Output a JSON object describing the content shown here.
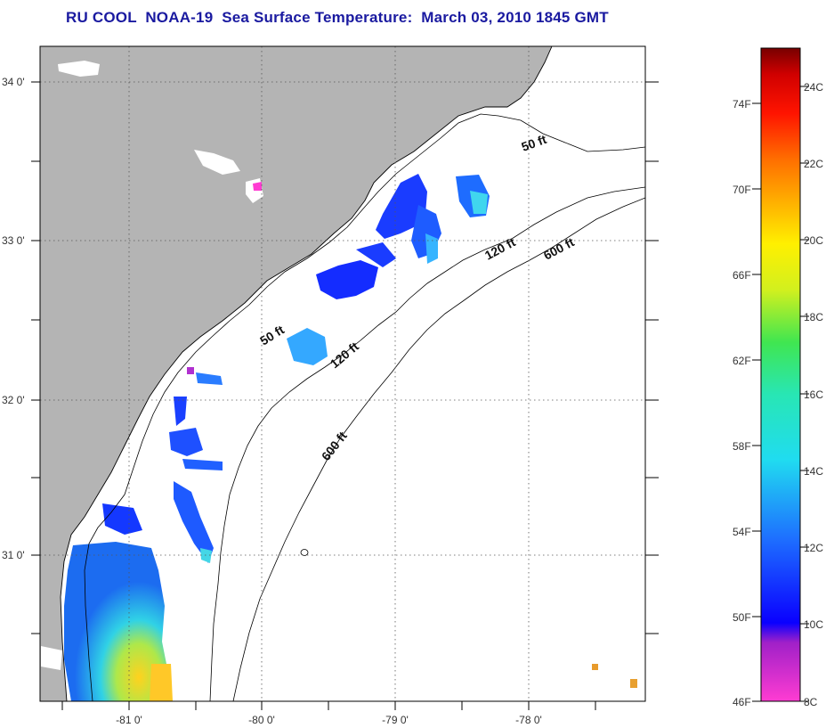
{
  "title": "RU COOL  NOAA-19  Sea Surface Temperature:  March 03, 2010 1845 GMT",
  "lat_labels": [
    "34 0'",
    "33 0'",
    "32 0'",
    "31 0'"
  ],
  "lon_labels": [
    "-81 0'",
    "-80 0'",
    "-79 0'",
    "-78 0'"
  ],
  "depth_labels": {
    "d50_north": "50 ft",
    "d50_south": "50 ft",
    "d120_north": "120 ft",
    "d120_south": "120 ft",
    "d600_north": "600 ft",
    "d600_south": "600 ft"
  },
  "colorbar": {
    "fahrenheit": [
      "74F",
      "70F",
      "66F",
      "62F",
      "58F",
      "54F",
      "50F",
      "46F"
    ],
    "celsius": [
      "24C",
      "22C",
      "20C",
      "18C",
      "16C",
      "14C",
      "12C",
      "10C",
      "8C"
    ]
  },
  "colors": {
    "land": "#b4b4b4",
    "ocean": "#ffffff",
    "title": "#1a1aa0",
    "cold": "#1a1aff",
    "cool": "#22c8f0",
    "warm": "#ffd21e"
  }
}
